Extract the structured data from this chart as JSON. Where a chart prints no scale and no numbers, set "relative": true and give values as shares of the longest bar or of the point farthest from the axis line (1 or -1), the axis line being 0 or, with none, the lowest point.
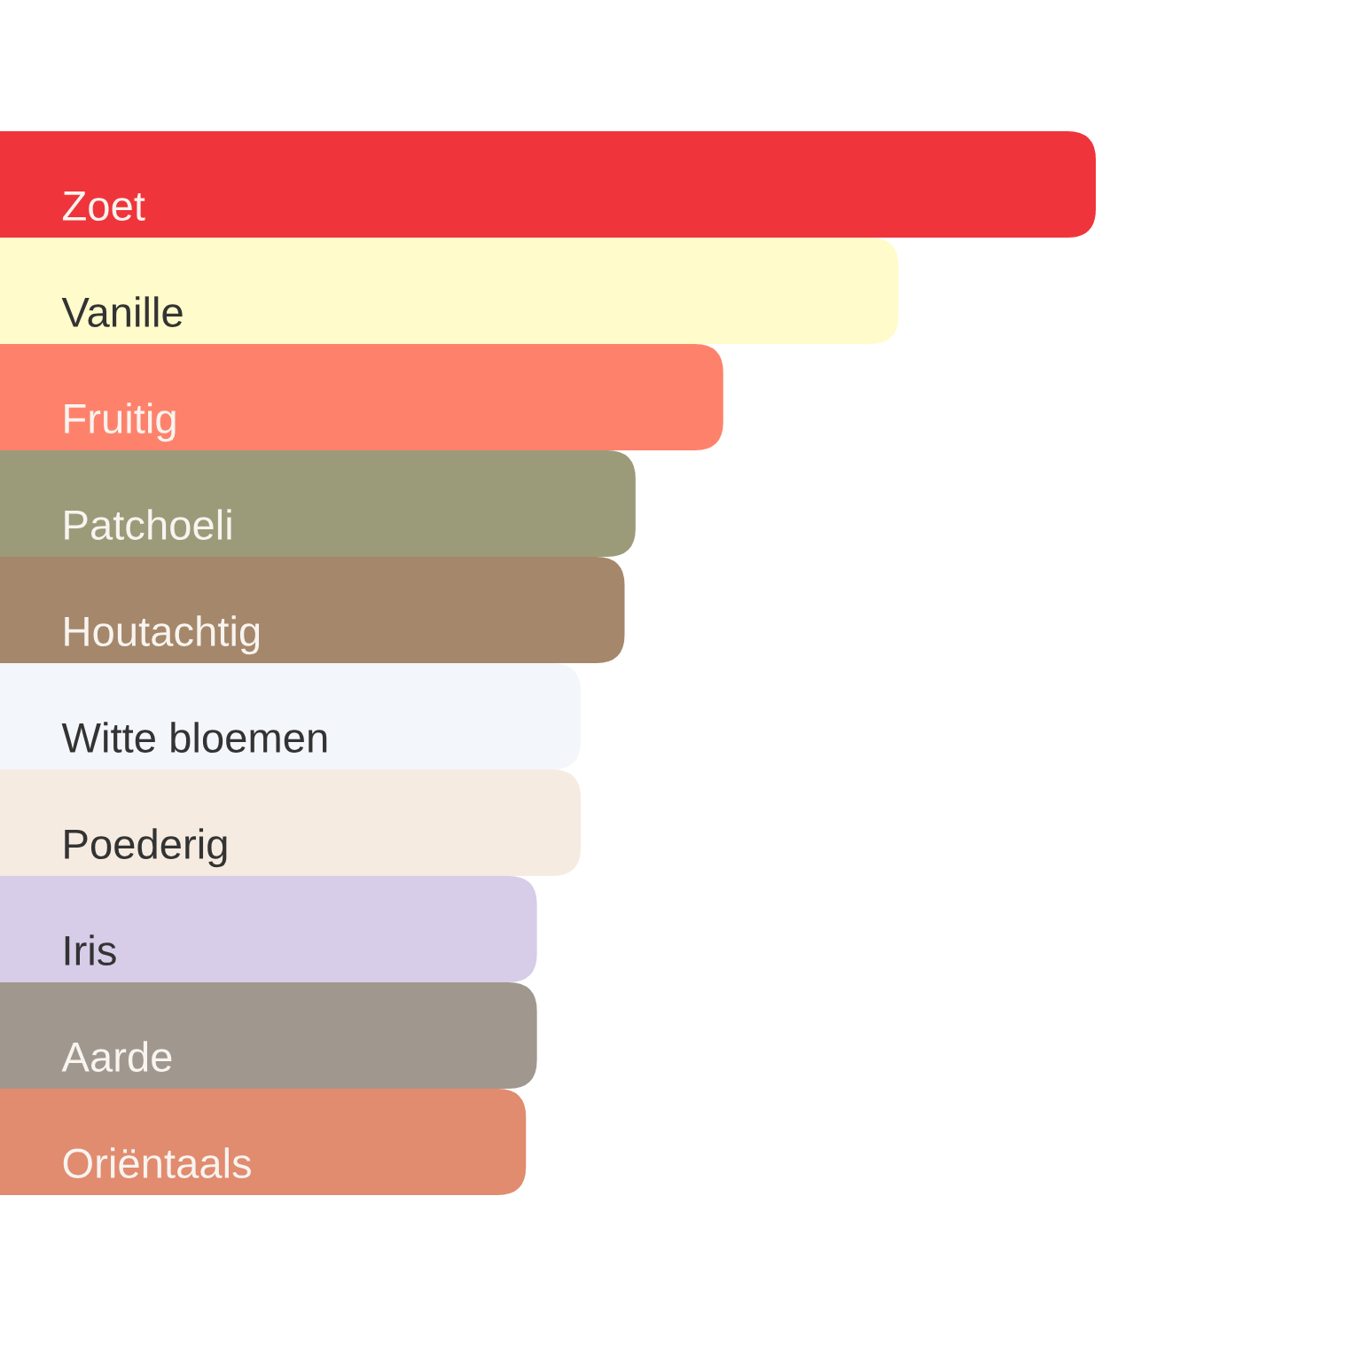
{
  "chart_data": {
    "type": "bar",
    "orientation": "horizontal",
    "relative": true,
    "categories": [
      "Zoet",
      "Vanille",
      "Fruitig",
      "Patchoeli",
      "Houtachtig",
      "Witte bloemen",
      "Poederig",
      "Iris",
      "Aarde",
      "Oriëntaals"
    ],
    "values": [
      1,
      0.82,
      0.66,
      0.58,
      0.57,
      0.53,
      0.53,
      0.49,
      0.49,
      0.48
    ],
    "colors": [
      "#ef353b",
      "#fffbcb",
      "#fe826b",
      "#9b9b7a",
      "#a5876b",
      "#f3f6fb",
      "#f5ebe1",
      "#d7cde8",
      "#a0988e",
      "#e18b6f"
    ]
  }
}
